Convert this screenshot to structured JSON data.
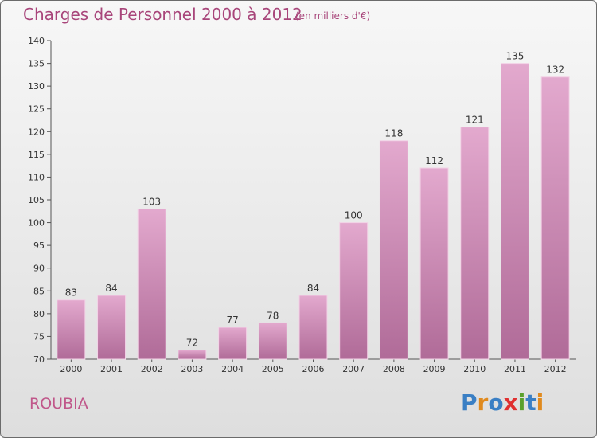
{
  "header": {
    "title": "Charges de Personnel 2000 à 2012",
    "subtitle": "(en milliers d'€)"
  },
  "footer": {
    "commune": "ROUBIA",
    "logo_text": "Proxiti",
    "logo_letters": [
      {
        "ch": "P",
        "color": "#3a7fc4"
      },
      {
        "ch": "r",
        "color": "#e08a1e"
      },
      {
        "ch": "o",
        "color": "#3a7fc4"
      },
      {
        "ch": "x",
        "color": "#e03030"
      },
      {
        "ch": "i",
        "color": "#5aa02c"
      },
      {
        "ch": "t",
        "color": "#3a7fc4"
      },
      {
        "ch": "i",
        "color": "#e08a1e"
      }
    ]
  },
  "colors": {
    "bar_top": "#e3a9ce",
    "bar_bottom": "#b06b98",
    "title": "#a8457a"
  },
  "chart_data": {
    "type": "bar",
    "title": "Charges de Personnel 2000 à 2012",
    "subtitle": "(en milliers d'€)",
    "categories": [
      "2000",
      "2001",
      "2002",
      "2003",
      "2004",
      "2005",
      "2006",
      "2007",
      "2008",
      "2009",
      "2010",
      "2011",
      "2012"
    ],
    "values": [
      83,
      84,
      103,
      72,
      77,
      78,
      84,
      100,
      118,
      112,
      121,
      135,
      132
    ],
    "ylim": [
      70,
      140
    ],
    "yticks": [
      70,
      75,
      80,
      85,
      90,
      95,
      100,
      105,
      110,
      115,
      120,
      125,
      130,
      135,
      140
    ],
    "grid": false,
    "xlabel": "",
    "ylabel": ""
  }
}
